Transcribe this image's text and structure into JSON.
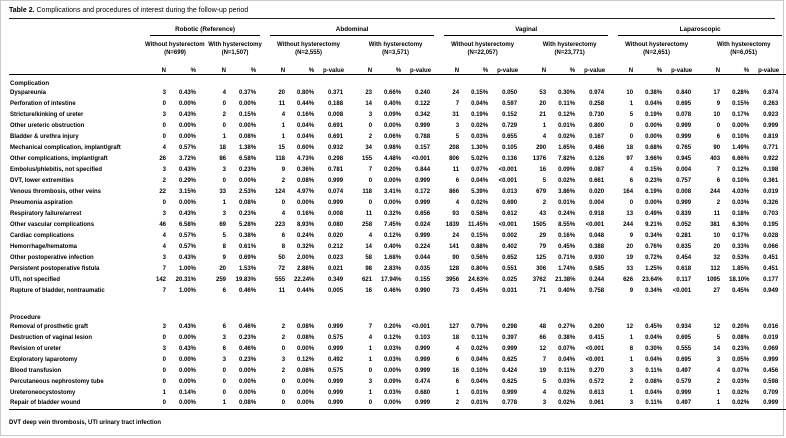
{
  "title": {
    "label": "Table 2.",
    "text": " Complications and procedures of interest during the follow-up period"
  },
  "footnote": "DVT deep vein thrombosis, UTI urinary tract infection",
  "table": {
    "groups": [
      {
        "label": "Robotic (Reference)",
        "subgroups": [
          {
            "label": "Without hysterectomy",
            "n": "(N=699)",
            "cols": [
              "N",
              "%"
            ]
          },
          {
            "label": "With hysterectomy",
            "n": "(N=1,507)",
            "cols": [
              "N",
              "%"
            ]
          }
        ]
      },
      {
        "label": "Abdominal",
        "subgroups": [
          {
            "label": "Without hysterectomy",
            "n": "(N=2,555)",
            "cols": [
              "N",
              "%",
              "p-value"
            ]
          },
          {
            "label": "With hysterectomy",
            "n": "(N=3,571)",
            "cols": [
              "N",
              "%",
              "p-value"
            ]
          }
        ]
      },
      {
        "label": "Vaginal",
        "subgroups": [
          {
            "label": "Without hysterectomy",
            "n": "(N=22,057)",
            "cols": [
              "N",
              "%",
              "p-value"
            ]
          },
          {
            "label": "With hysterectomy",
            "n": "(N=23,771)",
            "cols": [
              "N",
              "%",
              "p-value"
            ]
          }
        ]
      },
      {
        "label": "Laparoscopic",
        "subgroups": [
          {
            "label": "Without hysterectomy",
            "n": "(N=2,651)",
            "cols": [
              "N",
              "%",
              "p-value"
            ]
          },
          {
            "label": "With hysterectomy",
            "n": "(N=6,051)",
            "cols": [
              "N",
              "%",
              "p-value"
            ]
          }
        ]
      }
    ],
    "sections": [
      {
        "label": "Complication",
        "rows": [
          {
            "label": "Dyspareunia",
            "values": [
              "3",
              "0.43%",
              "4",
              "0.37%",
              "20",
              "0.80%",
              "0.371",
              "23",
              "0.66%",
              "0.240",
              "24",
              "0.15%",
              "0.050",
              "53",
              "0.30%",
              "0.974",
              "10",
              "0.38%",
              "0.840",
              "17",
              "0.28%",
              "0.874"
            ]
          },
          {
            "label": "Perforation of intestine",
            "values": [
              "0",
              "0.00%",
              "0",
              "0.00%",
              "11",
              "0.44%",
              "0.188",
              "14",
              "0.40%",
              "0.122",
              "7",
              "0.04%",
              "0.597",
              "20",
              "0.11%",
              "0.258",
              "1",
              "0.04%",
              "0.695",
              "9",
              "0.15%",
              "0.263"
            ]
          },
          {
            "label": "Stricture/kinking of ureter",
            "values": [
              "3",
              "0.43%",
              "2",
              "0.15%",
              "4",
              "0.16%",
              "0.008",
              "3",
              "0.09%",
              "0.342",
              "31",
              "0.19%",
              "0.152",
              "21",
              "0.12%",
              "0.730",
              "5",
              "0.19%",
              "0.078",
              "10",
              "0.17%",
              "0.923"
            ]
          },
          {
            "label": "Other ureteric obstruction",
            "values": [
              "0",
              "0.00%",
              "0",
              "0.00%",
              "1",
              "0.04%",
              "0.691",
              "0",
              "0.00%",
              "0.999",
              "3",
              "0.02%",
              "0.729",
              "1",
              "0.01%",
              "0.800",
              "0",
              "0.00%",
              "0.999",
              "0",
              "0.00%",
              "0.999"
            ]
          },
          {
            "label": "Bladder & urethra injury",
            "values": [
              "0",
              "0.00%",
              "1",
              "0.08%",
              "1",
              "0.04%",
              "0.691",
              "2",
              "0.06%",
              "0.788",
              "5",
              "0.03%",
              "0.655",
              "4",
              "0.02%",
              "0.167",
              "0",
              "0.00%",
              "0.999",
              "6",
              "0.10%",
              "0.819"
            ]
          },
          {
            "label": "Mechanical complication, implant/graft",
            "values": [
              "4",
              "0.57%",
              "18",
              "1.38%",
              "15",
              "0.60%",
              "0.932",
              "34",
              "0.98%",
              "0.157",
              "208",
              "1.30%",
              "0.105",
              "290",
              "1.65%",
              "0.466",
              "18",
              "0.68%",
              "0.765",
              "90",
              "1.49%",
              "0.771"
            ]
          },
          {
            "label": "Other complications, implant/graft",
            "values": [
              "26",
              "3.72%",
              "86",
              "6.58%",
              "118",
              "4.73%",
              "0.298",
              "155",
              "4.48%",
              "<0.001",
              "806",
              "5.02%",
              "0.136",
              "1376",
              "7.82%",
              "0.126",
              "97",
              "3.66%",
              "0.945",
              "403",
              "6.66%",
              "0.922"
            ]
          },
          {
            "label": "Embolus/phlebitis, not specified",
            "values": [
              "3",
              "0.43%",
              "3",
              "0.23%",
              "9",
              "0.36%",
              "0.781",
              "7",
              "0.20%",
              "0.844",
              "11",
              "0.07%",
              "<0.001",
              "16",
              "0.09%",
              "0.087",
              "4",
              "0.15%",
              "0.004",
              "7",
              "0.12%",
              "0.198"
            ]
          },
          {
            "label": "DVT, lower extremities",
            "values": [
              "2",
              "0.29%",
              "0",
              "0.00%",
              "2",
              "0.08%",
              "0.999",
              "0",
              "0.00%",
              "0.999",
              "6",
              "0.04%",
              "<0.001",
              "5",
              "0.02%",
              "0.661",
              "6",
              "0.23%",
              "0.757",
              "6",
              "0.10%",
              "0.361"
            ]
          },
          {
            "label": "Venous thrombosis, other veins",
            "values": [
              "22",
              "3.15%",
              "33",
              "2.53%",
              "124",
              "4.97%",
              "0.074",
              "118",
              "3.41%",
              "0.172",
              "866",
              "5.39%",
              "0.013",
              "679",
              "3.86%",
              "0.020",
              "164",
              "6.19%",
              "0.008",
              "244",
              "4.03%",
              "0.019"
            ]
          },
          {
            "label": "Pneumonia aspiration",
            "values": [
              "0",
              "0.00%",
              "1",
              "0.08%",
              "0",
              "0.00%",
              "0.999",
              "0",
              "0.00%",
              "0.999",
              "4",
              "0.02%",
              "0.690",
              "2",
              "0.01%",
              "0.004",
              "0",
              "0.00%",
              "0.999",
              "2",
              "0.03%",
              "0.326"
            ]
          },
          {
            "label": "Respiratory failure/arrest",
            "values": [
              "3",
              "0.43%",
              "3",
              "0.23%",
              "4",
              "0.16%",
              "0.008",
              "11",
              "0.32%",
              "0.656",
              "93",
              "0.58%",
              "0.612",
              "43",
              "0.24%",
              "0.918",
              "13",
              "0.49%",
              "0.839",
              "11",
              "0.18%",
              "0.703"
            ]
          },
          {
            "label": "Other vascular complications",
            "values": [
              "46",
              "6.58%",
              "69",
              "5.28%",
              "223",
              "8.93%",
              "0.080",
              "258",
              "7.45%",
              "0.024",
              "1839",
              "11.45%",
              "<0.001",
              "1505",
              "8.55%",
              "<0.001",
              "244",
              "9.21%",
              "0.052",
              "381",
              "6.30%",
              "0.195"
            ]
          },
          {
            "label": "Cardiac complications",
            "values": [
              "4",
              "0.57%",
              "5",
              "0.38%",
              "6",
              "0.24%",
              "0.020",
              "4",
              "0.12%",
              "0.999",
              "24",
              "0.15%",
              "0.002",
              "29",
              "0.16%",
              "0.048",
              "9",
              "0.34%",
              "0.281",
              "10",
              "0.17%",
              "0.028"
            ]
          },
          {
            "label": "Hemorrhage/hematoma",
            "values": [
              "4",
              "0.57%",
              "8",
              "0.61%",
              "8",
              "0.32%",
              "0.212",
              "14",
              "0.40%",
              "0.224",
              "141",
              "0.88%",
              "0.402",
              "79",
              "0.45%",
              "0.388",
              "20",
              "0.76%",
              "0.635",
              "20",
              "0.33%",
              "0.066"
            ]
          },
          {
            "label": "Other postoperative infection",
            "values": [
              "3",
              "0.43%",
              "9",
              "0.69%",
              "50",
              "2.00%",
              "0.023",
              "58",
              "1.68%",
              "0.044",
              "90",
              "0.56%",
              "0.652",
              "125",
              "0.71%",
              "0.930",
              "19",
              "0.72%",
              "0.454",
              "32",
              "0.53%",
              "0.451"
            ]
          },
          {
            "label": "Persistent postoperative fistula",
            "values": [
              "7",
              "1.00%",
              "20",
              "1.53%",
              "72",
              "2.88%",
              "0.021",
              "98",
              "2.83%",
              "0.035",
              "128",
              "0.80%",
              "0.551",
              "306",
              "1.74%",
              "0.585",
              "33",
              "1.25%",
              "0.618",
              "112",
              "1.85%",
              "0.451"
            ]
          },
          {
            "label": "UTI, not specified",
            "values": [
              "142",
              "20.31%",
              "259",
              "19.83%",
              "555",
              "22.24%",
              "0.349",
              "621",
              "17.94%",
              "0.155",
              "3956",
              "24.63%",
              "0.025",
              "3762",
              "21.38%",
              "0.244",
              "626",
              "23.64%",
              "0.117",
              "1095",
              "18.10%",
              "0.177"
            ]
          },
          {
            "label": "Rupture of bladder, nontraumatic",
            "values": [
              "7",
              "1.00%",
              "6",
              "0.46%",
              "11",
              "0.44%",
              "0.005",
              "16",
              "0.46%",
              "0.990",
              "73",
              "0.45%",
              "0.031",
              "71",
              "0.40%",
              "0.758",
              "9",
              "0.34%",
              "<0.001",
              "27",
              "0.45%",
              "0.949"
            ]
          }
        ]
      },
      {
        "label": "Procedure",
        "rows": [
          {
            "label": "Removal of prosthetic graft",
            "values": [
              "3",
              "0.43%",
              "6",
              "0.46%",
              "2",
              "0.08%",
              "0.999",
              "7",
              "0.20%",
              "<0.001",
              "127",
              "0.79%",
              "0.298",
              "48",
              "0.27%",
              "0.200",
              "12",
              "0.45%",
              "0.934",
              "12",
              "0.20%",
              "0.016"
            ]
          },
          {
            "label": "Destruction of vaginal lesion",
            "values": [
              "0",
              "0.00%",
              "3",
              "0.23%",
              "2",
              "0.08%",
              "0.575",
              "4",
              "0.12%",
              "0.103",
              "18",
              "0.11%",
              "0.397",
              "66",
              "0.38%",
              "0.415",
              "1",
              "0.04%",
              "0.695",
              "5",
              "0.08%",
              "0.019"
            ]
          },
          {
            "label": "Revision of ureter",
            "values": [
              "3",
              "0.43%",
              "6",
              "0.46%",
              "0",
              "0.00%",
              "0.999",
              "1",
              "0.03%",
              "0.999",
              "4",
              "0.02%",
              "0.999",
              "12",
              "0.07%",
              "<0.001",
              "8",
              "0.30%",
              "0.555",
              "14",
              "0.23%",
              "0.069"
            ]
          },
          {
            "label": "Exploratory laparotomy",
            "values": [
              "0",
              "0.00%",
              "3",
              "0.23%",
              "3",
              "0.12%",
              "0.492",
              "1",
              "0.03%",
              "0.999",
              "6",
              "0.04%",
              "0.625",
              "7",
              "0.04%",
              "<0.001",
              "1",
              "0.04%",
              "0.695",
              "3",
              "0.05%",
              "0.999"
            ]
          },
          {
            "label": "Blood transfusion",
            "values": [
              "0",
              "0.00%",
              "0",
              "0.00%",
              "2",
              "0.08%",
              "0.575",
              "0",
              "0.00%",
              "0.999",
              "16",
              "0.10%",
              "0.424",
              "19",
              "0.11%",
              "0.270",
              "3",
              "0.11%",
              "0.497",
              "4",
              "0.07%",
              "0.456"
            ]
          },
          {
            "label": "Percutaneous nephrostomy tube",
            "values": [
              "0",
              "0.00%",
              "0",
              "0.00%",
              "0",
              "0.00%",
              "0.999",
              "3",
              "0.09%",
              "0.474",
              "6",
              "0.04%",
              "0.625",
              "5",
              "0.03%",
              "0.572",
              "2",
              "0.08%",
              "0.579",
              "2",
              "0.03%",
              "0.598"
            ]
          },
          {
            "label": "Ureteroneocystostomy",
            "values": [
              "1",
              "0.14%",
              "0",
              "0.00%",
              "0",
              "0.00%",
              "0.999",
              "1",
              "0.03%",
              "0.680",
              "1",
              "0.01%",
              "0.999",
              "4",
              "0.02%",
              "0.613",
              "1",
              "0.04%",
              "0.999",
              "1",
              "0.02%",
              "0.709"
            ]
          },
          {
            "label": "Repair of bladder wound",
            "values": [
              "0",
              "0.00%",
              "1",
              "0.08%",
              "0",
              "0.00%",
              "0.999",
              "0",
              "0.00%",
              "0.999",
              "2",
              "0.01%",
              "0.778",
              "3",
              "0.02%",
              "0.061",
              "3",
              "0.11%",
              "0.497",
              "1",
              "0.02%",
              "0.999"
            ]
          }
        ]
      }
    ]
  }
}
